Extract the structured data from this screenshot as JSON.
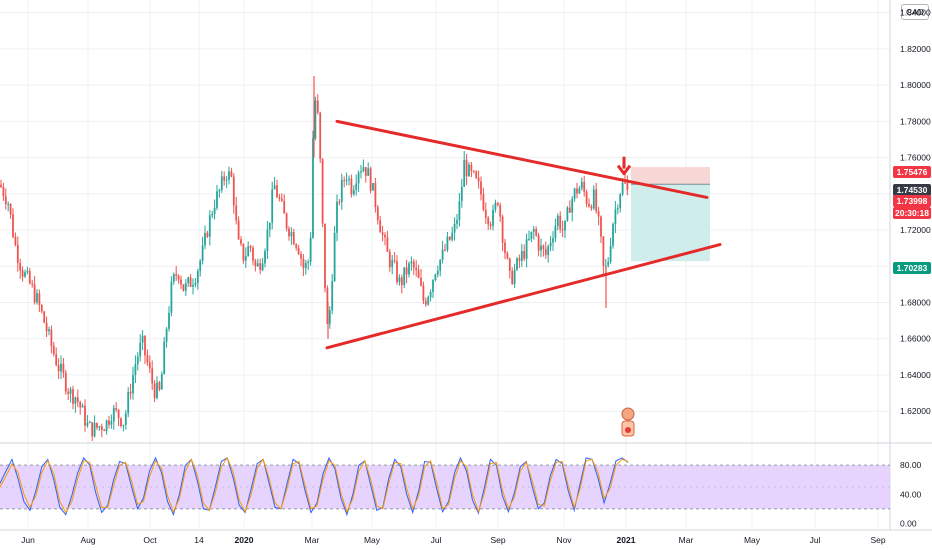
{
  "currency_button": "CAD",
  "colors": {
    "up": "#26a69a",
    "down": "#ef5350",
    "trendline": "#e52a2a",
    "rsi_band": "#e6d4ff",
    "stop_zone": "#f8d7d7",
    "target_zone": "#cfeeeb",
    "grid": "#eef0f3"
  },
  "chart_data": [
    {
      "type": "candlestick",
      "title": "",
      "y_axis": {
        "ticks": [
          "1.84000",
          "1.82000",
          "1.80000",
          "1.78000",
          "1.76000",
          "1.74000",
          "1.72000",
          "1.70000",
          "1.68000",
          "1.66000",
          "1.64000",
          "1.62000"
        ],
        "ylim": [
          1.603,
          1.847
        ]
      },
      "x_axis": {
        "ticks": [
          {
            "label": "Jun",
            "bold": false
          },
          {
            "label": "Aug",
            "bold": false
          },
          {
            "label": "Oct",
            "bold": false
          },
          {
            "label": "14",
            "bold": false
          },
          {
            "label": "2020",
            "bold": true
          },
          {
            "label": "Mar",
            "bold": false
          },
          {
            "label": "May",
            "bold": false
          },
          {
            "label": "Jul",
            "bold": false
          },
          {
            "label": "Sep",
            "bold": false
          },
          {
            "label": "Nov",
            "bold": false
          },
          {
            "label": "2021",
            "bold": true
          },
          {
            "label": "Mar",
            "bold": false
          },
          {
            "label": "May",
            "bold": false
          },
          {
            "label": "Jul",
            "bold": false
          },
          {
            "label": "Sep",
            "bold": false
          }
        ]
      },
      "price_path": [
        [
          0,
          1.745
        ],
        [
          8,
          1.736
        ],
        [
          15,
          1.712
        ],
        [
          22,
          1.698
        ],
        [
          30,
          1.69
        ],
        [
          38,
          1.68
        ],
        [
          45,
          1.668
        ],
        [
          52,
          1.655
        ],
        [
          58,
          1.645
        ],
        [
          64,
          1.638
        ],
        [
          70,
          1.63
        ],
        [
          76,
          1.628
        ],
        [
          82,
          1.62
        ],
        [
          88,
          1.611
        ],
        [
          94,
          1.61
        ],
        [
          100,
          1.612
        ],
        [
          106,
          1.613
        ],
        [
          112,
          1.62
        ],
        [
          118,
          1.618
        ],
        [
          124,
          1.614
        ],
        [
          130,
          1.632
        ],
        [
          136,
          1.648
        ],
        [
          142,
          1.658
        ],
        [
          148,
          1.645
        ],
        [
          154,
          1.632
        ],
        [
          160,
          1.63
        ],
        [
          166,
          1.664
        ],
        [
          172,
          1.69
        ],
        [
          178,
          1.698
        ],
        [
          184,
          1.687
        ],
        [
          190,
          1.691
        ],
        [
          196,
          1.696
        ],
        [
          202,
          1.706
        ],
        [
          208,
          1.722
        ],
        [
          214,
          1.735
        ],
        [
          220,
          1.742
        ],
        [
          226,
          1.752
        ],
        [
          232,
          1.748
        ],
        [
          238,
          1.712
        ],
        [
          244,
          1.705
        ],
        [
          250,
          1.712
        ],
        [
          256,
          1.698
        ],
        [
          262,
          1.705
        ],
        [
          268,
          1.72
        ],
        [
          274,
          1.745
        ],
        [
          280,
          1.735
        ],
        [
          286,
          1.724
        ],
        [
          292,
          1.718
        ],
        [
          298,
          1.712
        ],
        [
          304,
          1.698
        ],
        [
          310,
          1.705
        ],
        [
          314,
          1.793
        ],
        [
          317,
          1.79
        ],
        [
          320,
          1.76
        ],
        [
          324,
          1.7
        ],
        [
          328,
          1.66
        ],
        [
          332,
          1.695
        ],
        [
          336,
          1.728
        ],
        [
          340,
          1.74
        ],
        [
          346,
          1.752
        ],
        [
          352,
          1.743
        ],
        [
          358,
          1.754
        ],
        [
          364,
          1.756
        ],
        [
          370,
          1.748
        ],
        [
          376,
          1.734
        ],
        [
          382,
          1.718
        ],
        [
          388,
          1.705
        ],
        [
          394,
          1.699
        ],
        [
          400,
          1.69
        ],
        [
          406,
          1.697
        ],
        [
          412,
          1.701
        ],
        [
          418,
          1.693
        ],
        [
          424,
          1.68
        ],
        [
          430,
          1.688
        ],
        [
          436,
          1.7
        ],
        [
          442,
          1.705
        ],
        [
          448,
          1.713
        ],
        [
          454,
          1.719
        ],
        [
          460,
          1.735
        ],
        [
          464,
          1.757
        ],
        [
          468,
          1.752
        ],
        [
          474,
          1.748
        ],
        [
          480,
          1.742
        ],
        [
          486,
          1.73
        ],
        [
          492,
          1.725
        ],
        [
          498,
          1.738
        ],
        [
          504,
          1.712
        ],
        [
          510,
          1.692
        ],
        [
          516,
          1.699
        ],
        [
          522,
          1.706
        ],
        [
          528,
          1.712
        ],
        [
          534,
          1.72
        ],
        [
          540,
          1.71
        ],
        [
          546,
          1.706
        ],
        [
          552,
          1.718
        ],
        [
          558,
          1.727
        ],
        [
          564,
          1.718
        ],
        [
          570,
          1.735
        ],
        [
          576,
          1.742
        ],
        [
          582,
          1.744
        ],
        [
          588,
          1.735
        ],
        [
          594,
          1.738
        ],
        [
          600,
          1.718
        ],
        [
          604,
          1.695
        ],
        [
          608,
          1.703
        ],
        [
          612,
          1.722
        ],
        [
          616,
          1.733
        ],
        [
          620,
          1.742
        ],
        [
          624,
          1.746
        ],
        [
          628,
          1.74
        ]
      ],
      "annotations": {
        "triangle_upper_line": [
          [
            337,
            1.78
          ],
          [
            707,
            1.738
          ]
        ],
        "triangle_lower_line": [
          [
            327,
            1.655
          ],
          [
            720,
            1.712
          ]
        ],
        "down_arrow": [
          624,
          1.755
        ],
        "short_position": {
          "x_start": 631,
          "x_end": 710,
          "stop": 1.75476,
          "entry": 1.7453,
          "target": 1.70283
        }
      },
      "price_tags": [
        {
          "label": "1.75476",
          "value": 1.75476,
          "color": "#f23645"
        },
        {
          "label": "1.74530",
          "value": 1.7453,
          "color": "#363a45"
        },
        {
          "label": "1.73998",
          "value": 1.73998,
          "color": "#f23645"
        },
        {
          "label": "20:30:18",
          "value": 1.7341,
          "color": "#f23645"
        },
        {
          "label": "1.70283",
          "value": 1.70283,
          "color": "#089981"
        }
      ]
    },
    {
      "type": "line",
      "title": "",
      "y_axis": {
        "ticks": [
          "80.00",
          "40.00",
          "0.00"
        ],
        "ylim": [
          -5,
          105
        ],
        "upper_band": 80,
        "lower_band": 20
      },
      "series": [
        {
          "color": "#2962ff",
          "values": [
            55,
            72,
            88,
            62,
            30,
            18,
            45,
            78,
            88,
            60,
            22,
            12,
            38,
            70,
            90,
            80,
            42,
            15,
            25,
            60,
            85,
            82,
            50,
            20,
            35,
            72,
            90,
            70,
            30,
            12,
            40,
            80,
            88,
            58,
            20,
            18,
            50,
            85,
            90,
            62,
            25,
            15,
            48,
            82,
            88,
            55,
            22,
            20,
            55,
            88,
            82,
            45,
            15,
            28,
            68,
            90,
            75,
            35,
            12,
            40,
            80,
            86,
            52,
            18,
            22,
            62,
            88,
            78,
            40,
            15,
            45,
            85,
            84,
            48,
            16,
            30,
            70,
            90,
            72,
            32,
            14,
            50,
            88,
            80,
            38,
            16,
            42,
            78,
            85,
            50,
            20,
            28,
            65,
            88,
            82,
            45,
            18,
            55,
            90,
            88,
            62,
            28,
            55,
            86,
            90,
            84
          ]
        },
        {
          "color": "#ff9800",
          "values": [
            50,
            65,
            82,
            70,
            40,
            22,
            38,
            70,
            86,
            68,
            30,
            15,
            30,
            62,
            86,
            84,
            52,
            22,
            22,
            52,
            80,
            84,
            58,
            26,
            30,
            64,
            86,
            76,
            38,
            16,
            34,
            72,
            88,
            66,
            28,
            18,
            42,
            78,
            90,
            70,
            32,
            16,
            40,
            76,
            88,
            62,
            28,
            20,
            48,
            82,
            85,
            52,
            20,
            24,
            60,
            86,
            80,
            42,
            16,
            34,
            72,
            86,
            60,
            24,
            20,
            55,
            84,
            82,
            48,
            20,
            38,
            78,
            86,
            56,
            20,
            26,
            62,
            86,
            78,
            40,
            16,
            42,
            82,
            84,
            46,
            20,
            36,
            72,
            84,
            58,
            26,
            24,
            58,
            84,
            85,
            52,
            22,
            48,
            86,
            88,
            70,
            34,
            48,
            80,
            88,
            85
          ]
        }
      ]
    }
  ]
}
